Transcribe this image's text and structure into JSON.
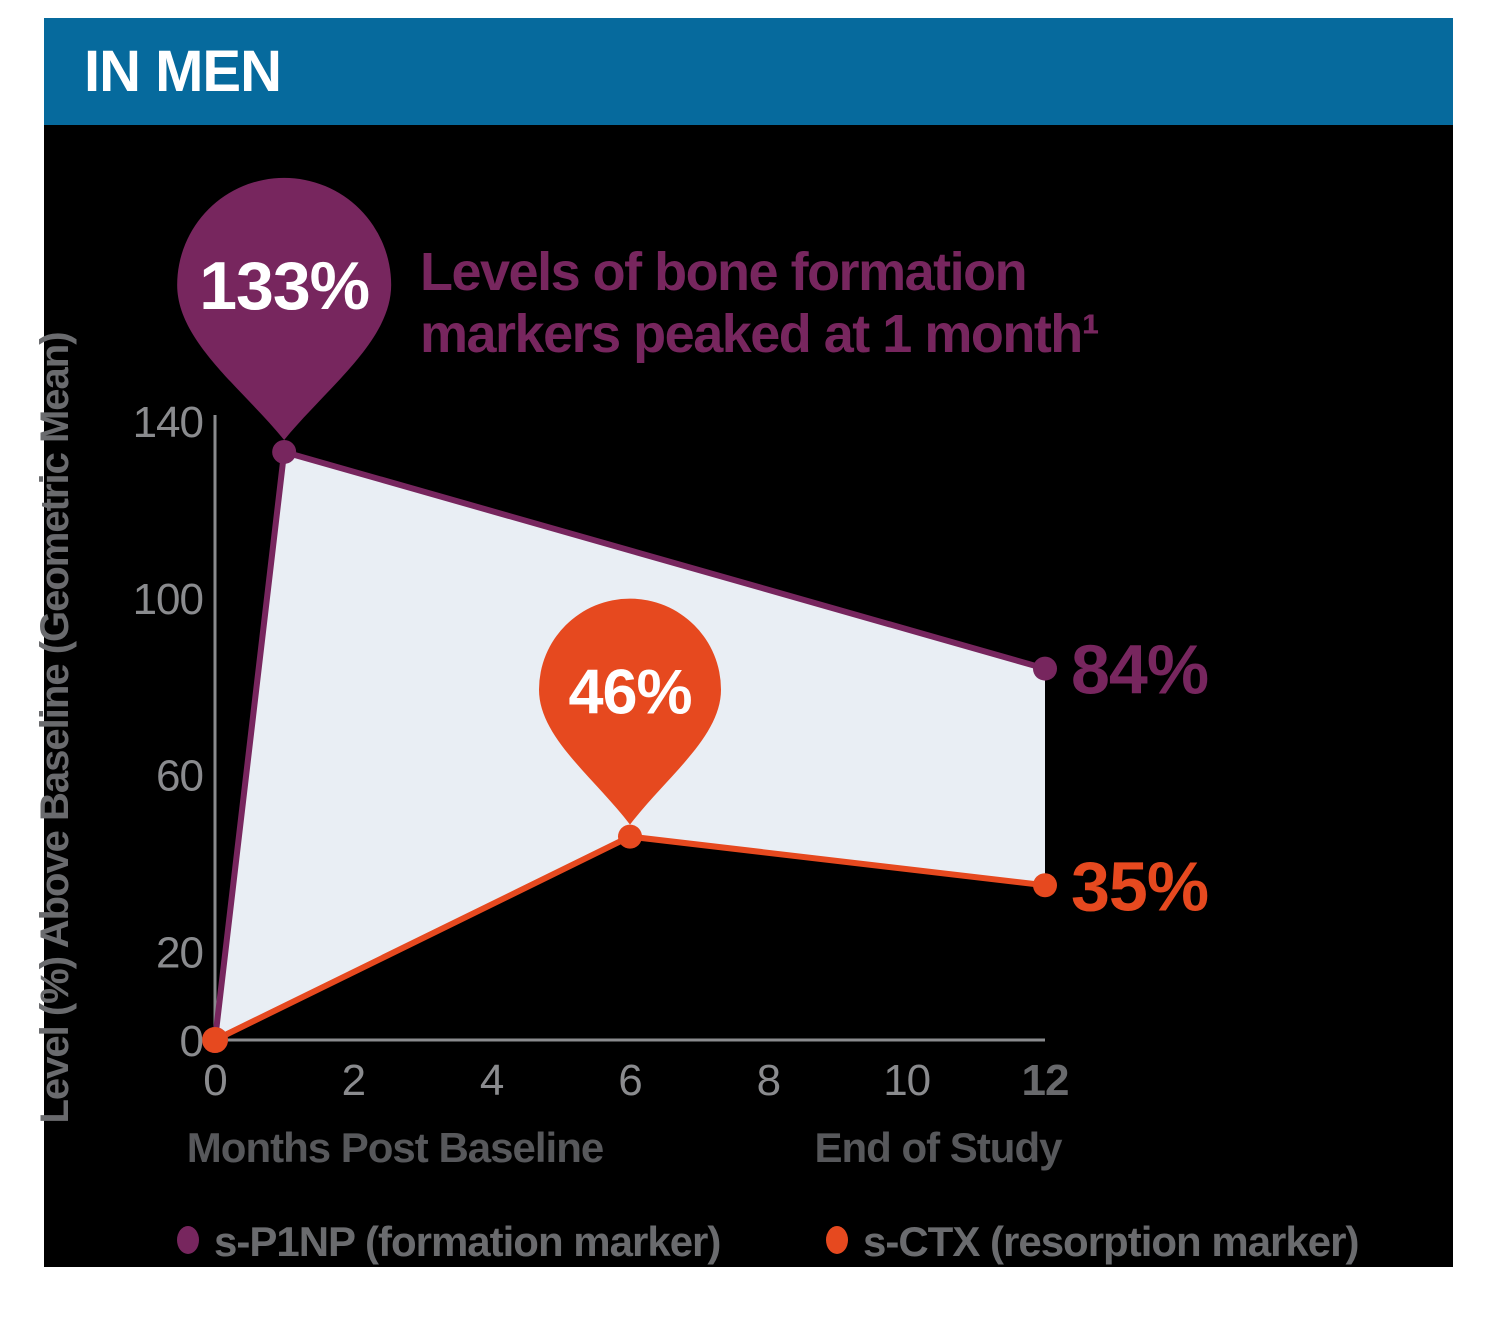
{
  "banner": {
    "title": "IN MEN",
    "bg_color": "#066A9D",
    "text_color": "#FFFFFF"
  },
  "title": {
    "line1": "Levels of bone formation",
    "line2": "markers peaked at 1 month¹",
    "color": "#77265E"
  },
  "chart_data": {
    "type": "line",
    "title": "Levels of bone formation markers peaked at 1 month (in men)",
    "xlabel_left": "Months Post Baseline",
    "xlabel_right": "End of Study",
    "ylabel": "Level (%) Above Baseline (Geometric Mean)",
    "x_ticks": [
      "0",
      "2",
      "4",
      "6",
      "8",
      "10",
      "12"
    ],
    "x_tick_emphasized": "12",
    "y_ticks": [
      0,
      20,
      60,
      100,
      140
    ],
    "x_range": [
      0,
      12
    ],
    "y_range": [
      0,
      140
    ],
    "grid": false,
    "legend_position": "bottom",
    "fill_between_color": "#E9EEF4",
    "axis_color": "#8A8B8E",
    "tick_label_color": "#8A8B8E",
    "emphasized_tick_color": "#68696C",
    "caption_color": "#57585B",
    "legend_text_color": "#6A6B6E",
    "series": [
      {
        "name": "s-P1NP",
        "legend": "s-P1NP (formation marker)",
        "color": "#77265E",
        "points": [
          [
            0,
            0
          ],
          [
            1,
            133
          ],
          [
            12,
            84
          ]
        ]
      },
      {
        "name": "s-CTX",
        "legend": "s-CTX (resorption marker)",
        "color": "#E6491F",
        "points": [
          [
            0,
            0
          ],
          [
            6,
            46
          ],
          [
            12,
            35
          ]
        ]
      }
    ],
    "callouts": [
      {
        "series": 0,
        "x": 1,
        "y": 133,
        "label": "133%"
      },
      {
        "series": 1,
        "x": 6,
        "y": 46,
        "label": "46%"
      }
    ],
    "end_labels": [
      {
        "series": 0,
        "x": 12,
        "y": 84,
        "label": "84%"
      },
      {
        "series": 1,
        "x": 12,
        "y": 35,
        "label": "35%"
      }
    ]
  }
}
